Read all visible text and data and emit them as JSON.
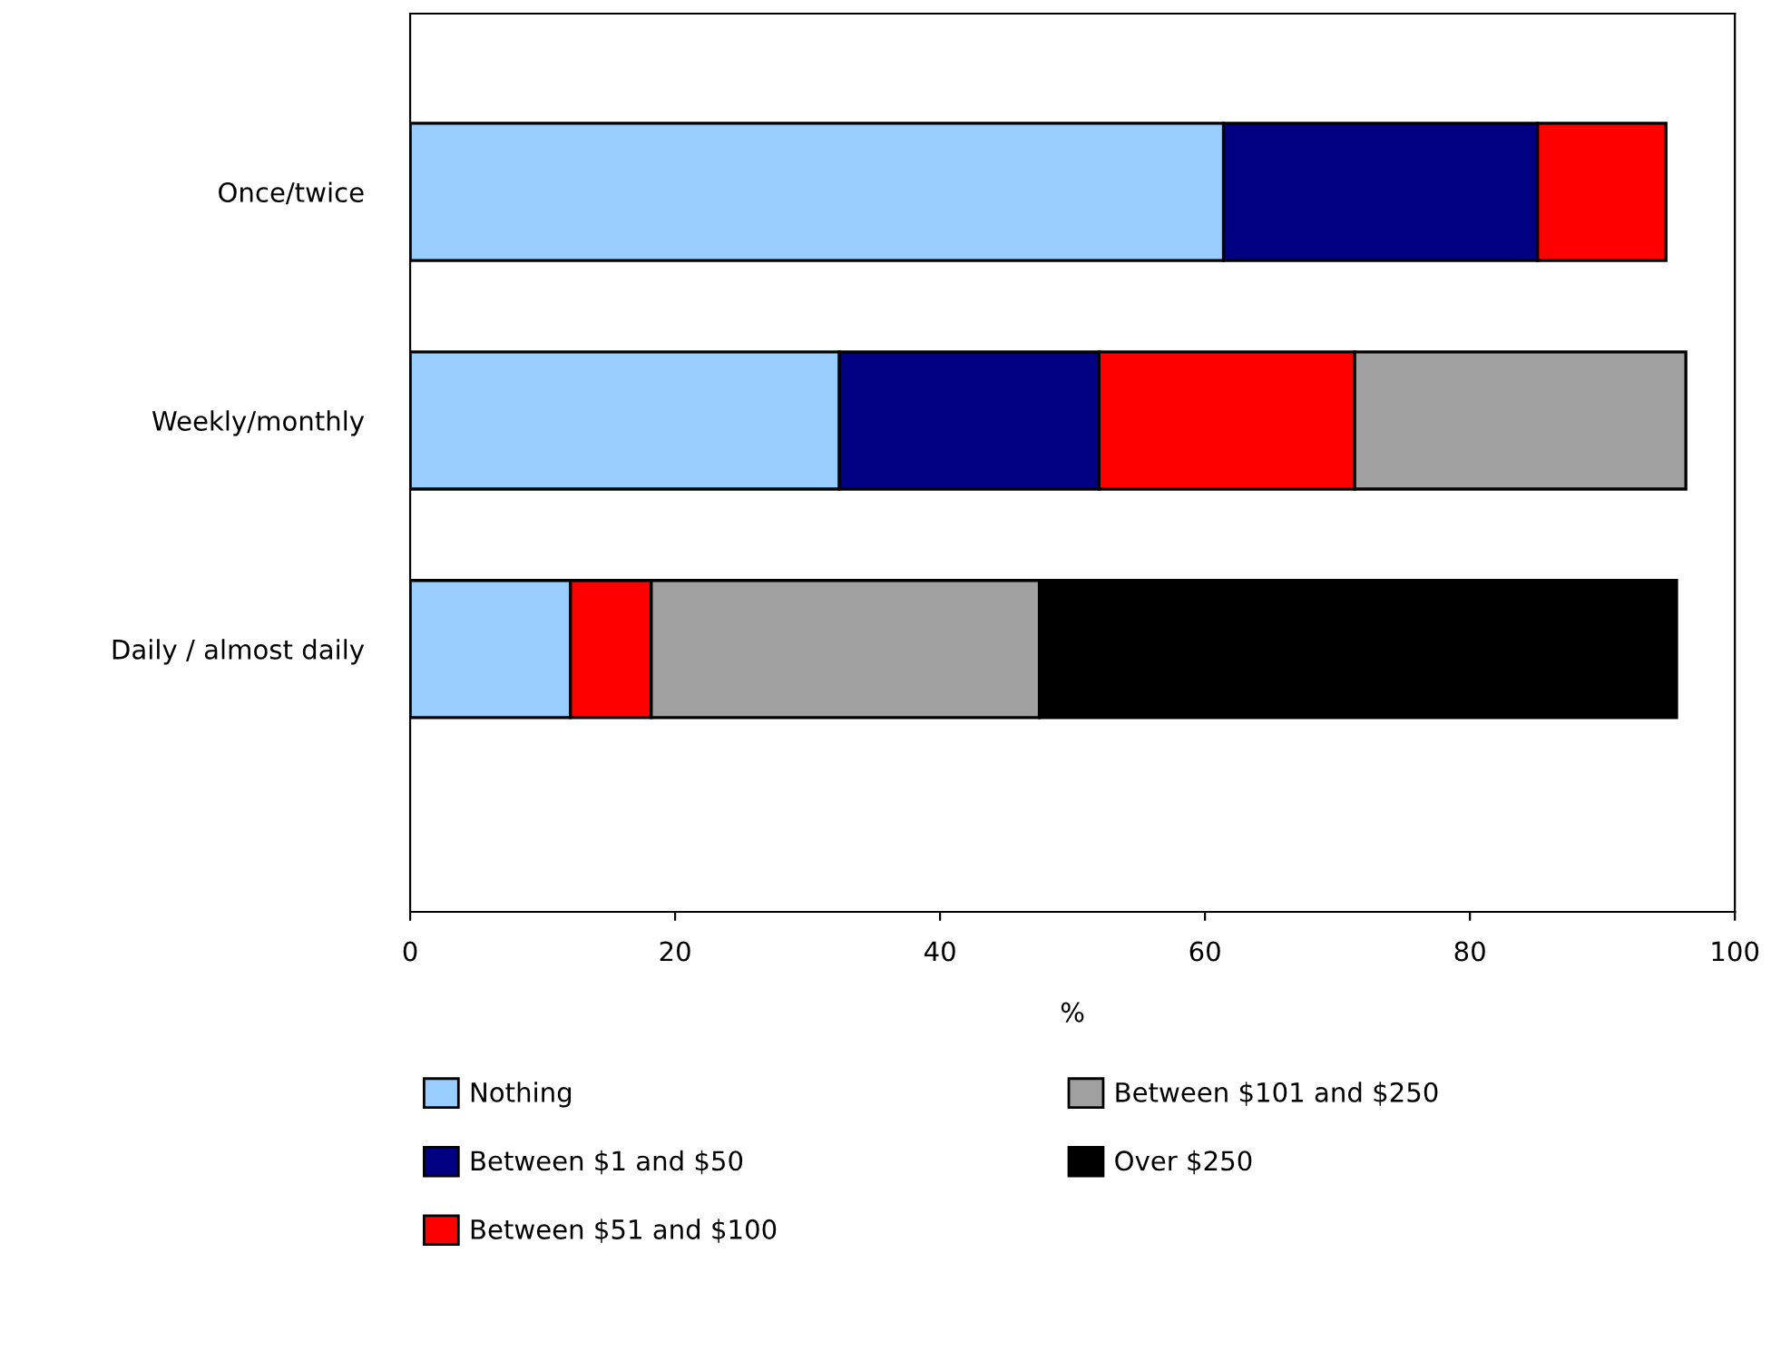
{
  "chart_data": {
    "type": "bar",
    "orientation": "horizontal",
    "stacked": true,
    "xlabel": "%",
    "categories": [
      "Once/twice",
      "Weekly/monthly",
      "Daily / almost daily"
    ],
    "series": [
      {
        "name": "Nothing",
        "color": "#99ccff",
        "values": [
          61.4,
          32.4,
          12.1
        ]
      },
      {
        "name": "Between $1 and $50",
        "color": "#000080",
        "values": [
          23.7,
          19.6,
          0
        ]
      },
      {
        "name": "Between $51 and $100",
        "color": "#ff0000",
        "values": [
          9.7,
          19.3,
          6.1
        ]
      },
      {
        "name": "Between $101 and $250",
        "color": "#a0a0a0",
        "values": [
          0,
          25.0,
          29.3
        ]
      },
      {
        "name": "Over $250",
        "color": "#000000",
        "values": [
          0,
          0,
          48.1
        ]
      }
    ],
    "xlim": [
      0,
      100
    ],
    "xticks": [
      0,
      20,
      40,
      60,
      80,
      100
    ],
    "grid": false,
    "legend": "bottom"
  }
}
